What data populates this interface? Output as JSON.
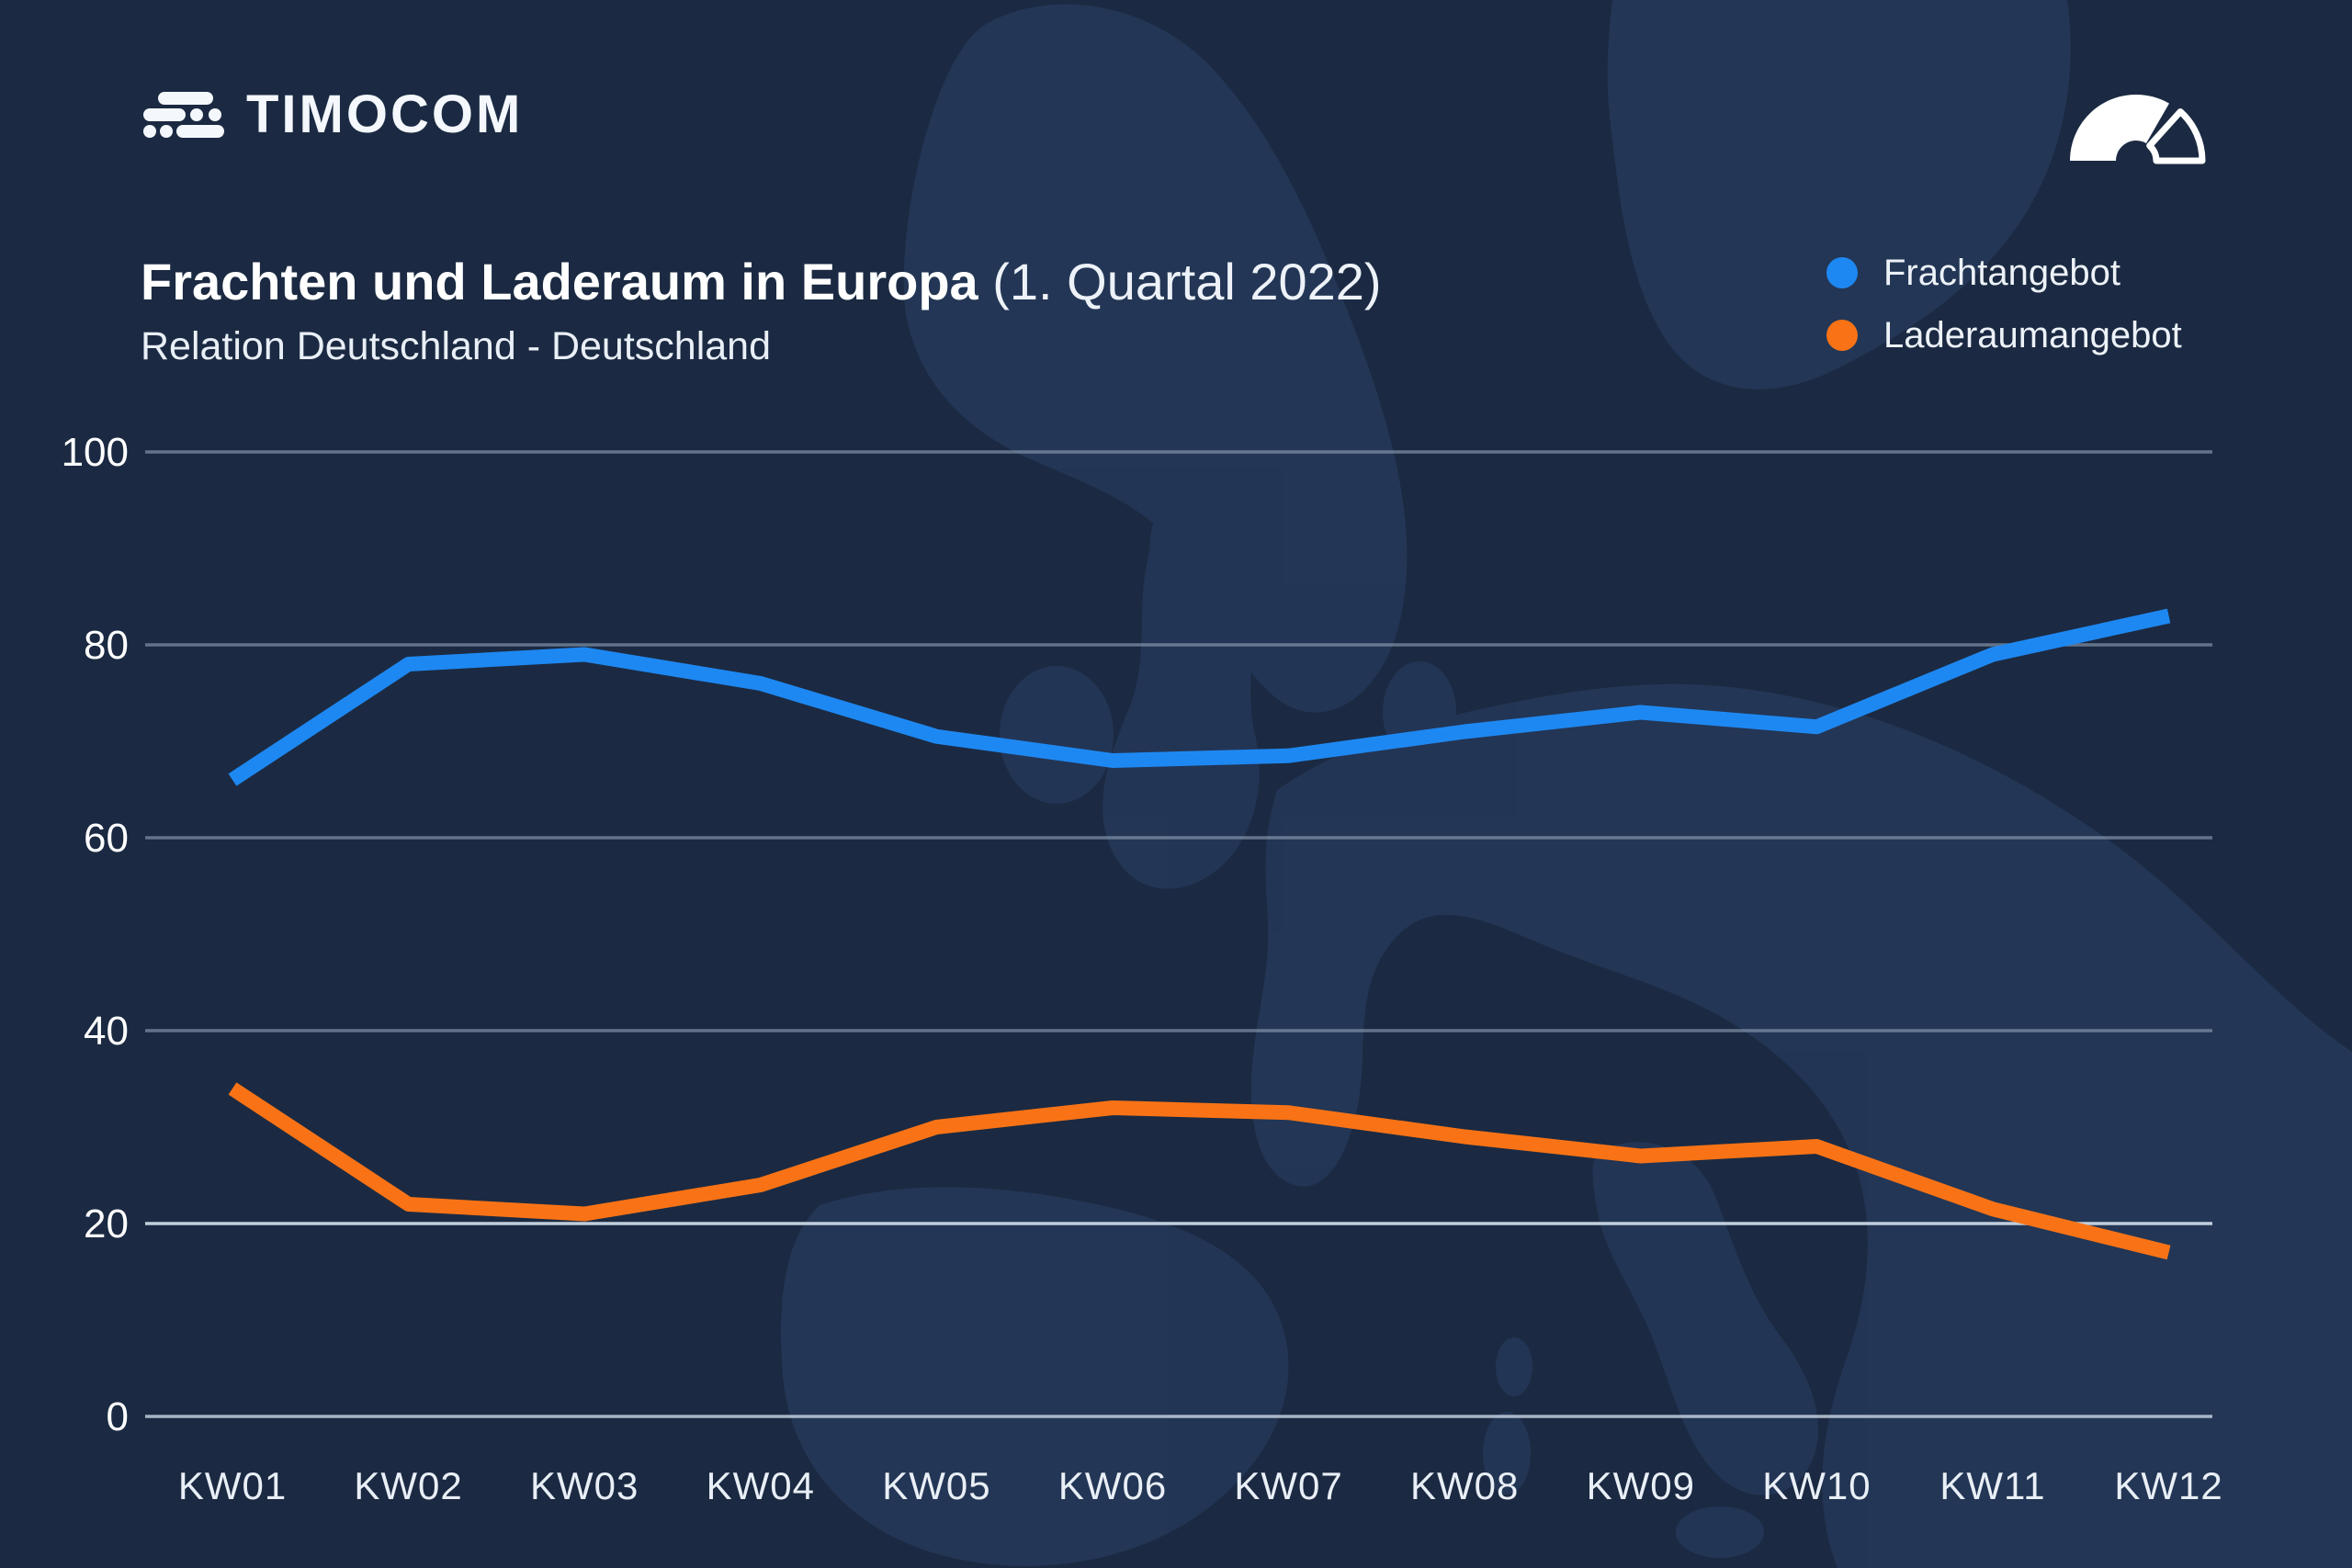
{
  "brand": {
    "logo_text": "TIMOCOM",
    "logo_mark_icon": "speed-lines-logo-icon",
    "corner_icon": "speedometer-gauge-icon"
  },
  "title": {
    "main": "Frachten und Laderaum in Europa",
    "period": " (1. Quartal 2022)",
    "subtitle": "Relation Deutschland - Deutschland"
  },
  "chart_data": {
    "type": "line",
    "title": "Frachten und Laderaum in Europa (1. Quartal 2022)",
    "subtitle": "Relation Deutschland - Deutschland",
    "categories": [
      "KW01",
      "KW02",
      "KW03",
      "KW04",
      "KW05",
      "KW06",
      "KW07",
      "KW08",
      "KW09",
      "KW10",
      "KW11",
      "KW12"
    ],
    "series": [
      {
        "name": "Frachtangebot",
        "color": "#1E88F2",
        "values": [
          66,
          78,
          79,
          76,
          70.5,
          68,
          68.5,
          71,
          73,
          71.5,
          79,
          83
        ]
      },
      {
        "name": "Laderaumangebot",
        "color": "#F97316",
        "values": [
          34,
          22,
          21,
          24,
          30,
          32,
          31.5,
          29,
          27,
          28,
          21.5,
          17
        ]
      }
    ],
    "ylim": [
      0,
      100
    ],
    "yticks": [
      0,
      20,
      40,
      60,
      80,
      100
    ],
    "grid": "horizontal",
    "legend_position": "top-right"
  },
  "colors": {
    "background": "#1B2A42",
    "map_silhouette": "#2C4168",
    "gridline": "#9FB0C4",
    "gridline_bright": "#CBD7E5",
    "text_primary": "#FFFFFF",
    "text_secondary": "#E9EFF6",
    "series_blue": "#1E88F2",
    "series_orange": "#F97316"
  }
}
